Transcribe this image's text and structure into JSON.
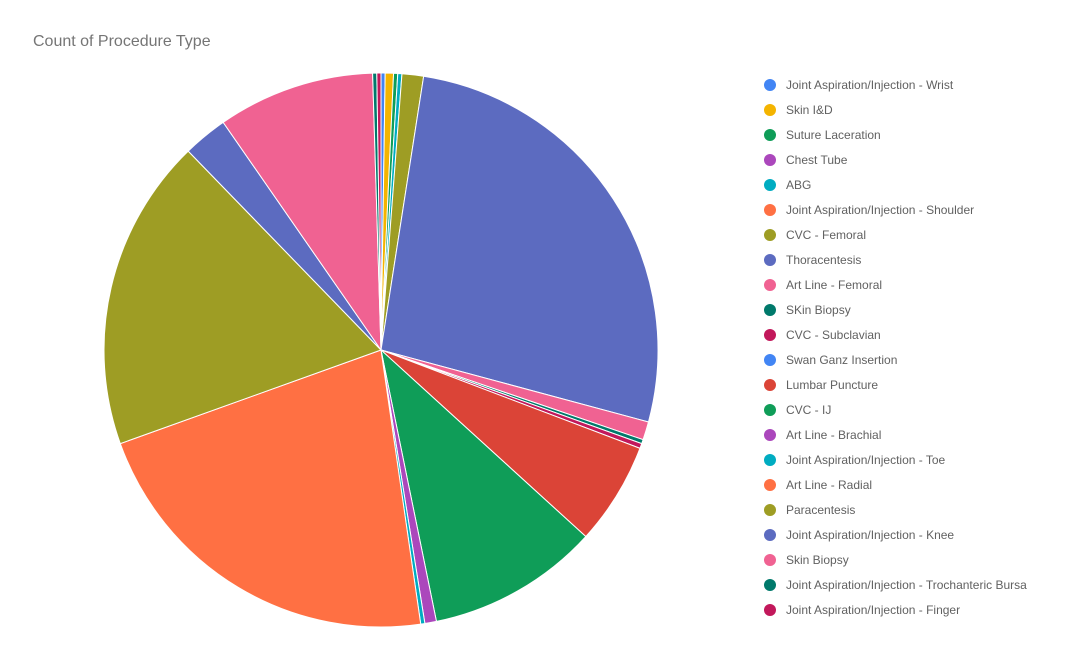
{
  "chart_data": {
    "type": "pie",
    "title": "Count of Procedure Type",
    "legend_position": "right",
    "slices": [
      {
        "label": "Joint Aspiration/Injection - Wrist",
        "value": 0.25,
        "color": "#4285F4"
      },
      {
        "label": "Skin I&D",
        "value": 0.5,
        "color": "#F4B400"
      },
      {
        "label": "Suture Laceration",
        "value": 0.25,
        "color": "#0F9D58"
      },
      {
        "label": "Chest Tube",
        "value": 0,
        "color": "#AB47BC"
      },
      {
        "label": "ABG",
        "value": 0.25,
        "color": "#00ACC1"
      },
      {
        "label": "Joint Aspiration/Injection - Shoulder",
        "value": 0,
        "color": "#FF7043"
      },
      {
        "label": "CVC - Femoral",
        "value": 1.3,
        "color": "#9E9D24"
      },
      {
        "label": "Thoracentesis",
        "value": 27.7,
        "color": "#5C6BC0"
      },
      {
        "label": "Art Line - Femoral",
        "value": 1.1,
        "color": "#F06292"
      },
      {
        "label": "SKin Biopsy",
        "value": 0.25,
        "color": "#00796B"
      },
      {
        "label": "CVC - Subclavian",
        "value": 0.3,
        "color": "#C2185B"
      },
      {
        "label": "Swan Ganz Insertion",
        "value": 0,
        "color": "#4285F4"
      },
      {
        "label": "Lumbar Puncture",
        "value": 6.2,
        "color": "#DB4437"
      },
      {
        "label": "CVC - IJ",
        "value": 10.4,
        "color": "#0F9D58"
      },
      {
        "label": "Art Line - Brachial",
        "value": 0.7,
        "color": "#AB47BC"
      },
      {
        "label": "Joint Aspiration/Injection - Toe",
        "value": 0.25,
        "color": "#00ACC1"
      },
      {
        "label": "Art Line - Radial",
        "value": 22.6,
        "color": "#FF7043"
      },
      {
        "label": "Paracentesis",
        "value": 18.9,
        "color": "#9E9D24"
      },
      {
        "label": "Joint Aspiration/Injection - Knee",
        "value": 2.7,
        "color": "#5C6BC0"
      },
      {
        "label": "Skin Biopsy",
        "value": 9.5,
        "color": "#F06292"
      },
      {
        "label": "Joint Aspiration/Injection - Trochanteric Bursa",
        "value": 0.25,
        "color": "#00796B"
      },
      {
        "label": "Joint Aspiration/Injection - Finger",
        "value": 0.25,
        "color": "#C2185B"
      }
    ]
  }
}
